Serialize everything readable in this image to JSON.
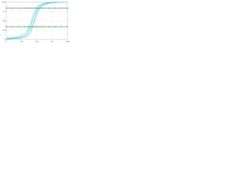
{
  "chart_data": {
    "type": "line",
    "x": [
      0,
      10,
      20,
      30,
      35,
      40,
      45,
      50,
      55,
      60,
      70,
      80,
      90,
      100
    ],
    "series": [
      {
        "color": "#40c8d8",
        "values": [
          2,
          3,
          5,
          10,
          18,
          35,
          60,
          80,
          90,
          95,
          98,
          99,
          100,
          100
        ]
      },
      {
        "color": "#30b8c8",
        "values": [
          1,
          2,
          3,
          6,
          10,
          22,
          45,
          70,
          85,
          92,
          97,
          99,
          100,
          100
        ]
      },
      {
        "color": "#60d8e0",
        "values": [
          3,
          5,
          8,
          15,
          25,
          45,
          70,
          87,
          94,
          97,
          99,
          100,
          100,
          100
        ]
      },
      {
        "color": "#5a8a6a",
        "markers": true,
        "values": [
          84,
          84,
          84,
          84,
          84,
          84,
          84,
          84,
          84,
          84,
          84,
          84,
          84,
          84
        ]
      },
      {
        "color": "#3a9a4a",
        "markers": true,
        "values": [
          34,
          34,
          34,
          34,
          34,
          34,
          34,
          34,
          34,
          34,
          34,
          34,
          34,
          34
        ]
      }
    ],
    "xlim": [
      0,
      100
    ],
    "xticks": [
      0,
      25,
      50,
      75,
      100
    ],
    "ylim": [
      0,
      100
    ],
    "yticks": [
      0,
      25,
      50,
      75,
      100
    ],
    "grid": true
  }
}
